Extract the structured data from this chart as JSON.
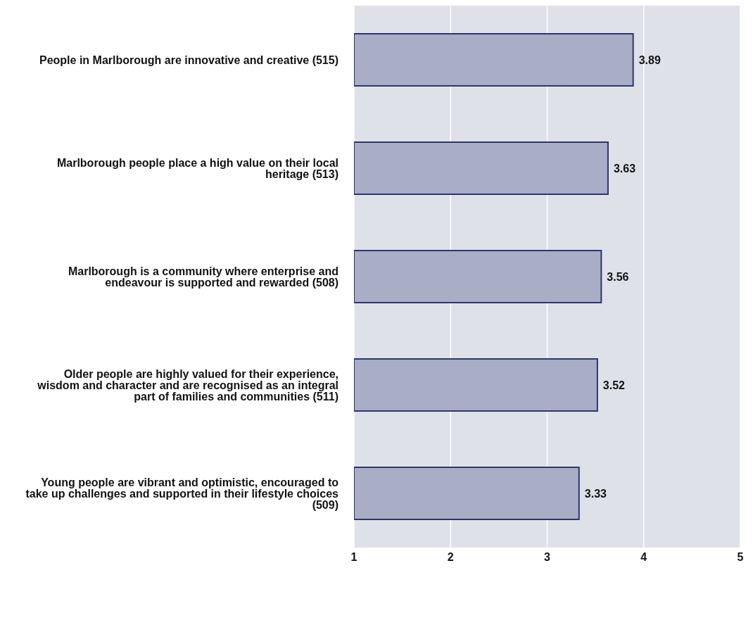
{
  "chart_data": {
    "type": "bar",
    "orientation": "horizontal",
    "categories": [
      "People in Marlborough are innovative and creative  (515)",
      "Marlborough people place a high value on their local heritage  (513)",
      "Marlborough is a community where enterprise and endeavour is supported and rewarded (508)",
      "Older people are highly valued for their experience, wisdom and character and are recognised as an integral part of families and communities  (511)",
      "Young people are vibrant and optimistic, encouraged to take up challenges and supported in their lifestyle choices  (509)"
    ],
    "values": [
      3.89,
      3.63,
      3.56,
      3.52,
      3.33
    ],
    "color": "#a9adc6",
    "xlim": [
      1,
      5
    ],
    "xticks": [
      1,
      2,
      3,
      4,
      5
    ],
    "grid": "x",
    "data_labels": true
  }
}
